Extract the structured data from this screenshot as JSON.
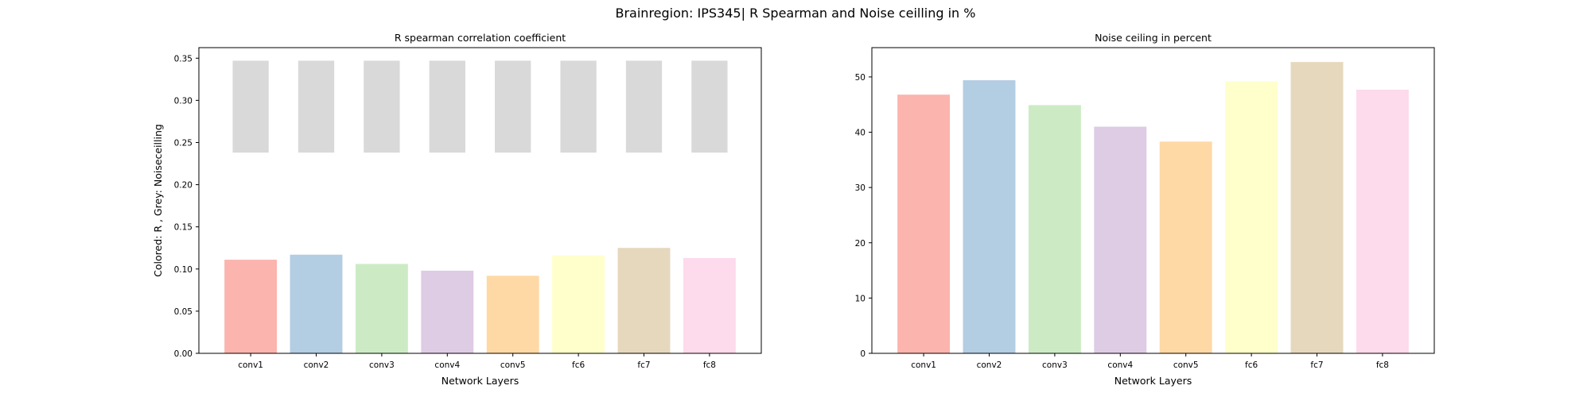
{
  "figure": {
    "suptitle": "Brainregion: IPS345| R Spearman and Noise ceilling in %"
  },
  "colors": {
    "series": [
      "#fbb4ae",
      "#b3cde3",
      "#ccebc5",
      "#decbe4",
      "#fed9a6",
      "#ffffcc",
      "#e5d8bd",
      "#fddaec"
    ],
    "noise_band": "#d9d9d9",
    "axes": "#000000"
  },
  "chart_data": [
    {
      "type": "bar",
      "title": "R spearman correlation coefficient",
      "xlabel": "Network Layers",
      "ylabel": "Colored: R , Grey: Noiseceilling",
      "categories": [
        "conv1",
        "conv2",
        "conv3",
        "conv4",
        "conv5",
        "fc6",
        "fc7",
        "fc8"
      ],
      "values": [
        0.111,
        0.117,
        0.106,
        0.098,
        0.092,
        0.116,
        0.125,
        0.113
      ],
      "noise_ceiling_band": {
        "lower": [
          0.238,
          0.238,
          0.238,
          0.238,
          0.238,
          0.238,
          0.238,
          0.238
        ],
        "upper": [
          0.347,
          0.347,
          0.347,
          0.347,
          0.347,
          0.347,
          0.347,
          0.347
        ]
      },
      "ylim": [
        0,
        0.3625
      ],
      "yticks": [
        "0.00",
        "0.05",
        "0.10",
        "0.15",
        "0.20",
        "0.25",
        "0.30",
        "0.35"
      ],
      "grid": false,
      "legend": "none"
    },
    {
      "type": "bar",
      "title": "Noise ceiling in percent",
      "xlabel": "Network Layers",
      "ylabel": "",
      "categories": [
        "conv1",
        "conv2",
        "conv3",
        "conv4",
        "conv5",
        "fc6",
        "fc7",
        "fc8"
      ],
      "values": [
        46.8,
        49.4,
        44.9,
        41.0,
        38.3,
        49.2,
        52.7,
        47.7
      ],
      "ylim": [
        0,
        55.3
      ],
      "yticks": [
        "0",
        "10",
        "20",
        "30",
        "40",
        "50"
      ],
      "grid": false,
      "legend": "none"
    }
  ]
}
